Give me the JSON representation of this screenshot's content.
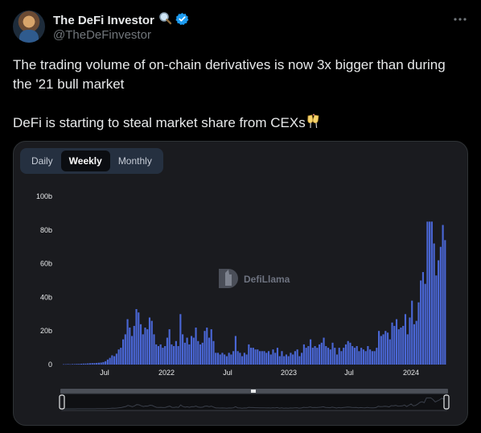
{
  "author": {
    "name": "The DeFi Investor",
    "handle": "@TheDeFinvestor",
    "avatar_icon": "profile-avatar",
    "emoji_icon": "magnifying-glass-icon",
    "badge_icon": "verified-badge-icon",
    "badge_color": "#1d9bf0"
  },
  "more_icon": "more-horizontal-icon",
  "tweet": {
    "line1": "The trading volume of on-chain derivatives is now 3x bigger than during the '21 bull market",
    "line2": "DeFi is starting to steal market share from CEXs",
    "emoji_icon": "clinking-glasses-icon"
  },
  "tabs": [
    {
      "label": "Daily",
      "active": false
    },
    {
      "label": "Weekly",
      "active": true
    },
    {
      "label": "Monthly",
      "active": false
    }
  ],
  "watermark": "DefiLlama",
  "chart_data": {
    "type": "bar",
    "series_color": "#4a67d6",
    "y_ticks": [
      "0",
      "20b",
      "40b",
      "60b",
      "80b",
      "100b"
    ],
    "ylim": [
      0,
      100
    ],
    "x_ticks": [
      "Jul",
      "2022",
      "Jul",
      "2023",
      "Jul",
      "2024"
    ],
    "unit": "billions USD",
    "values": [
      0.2,
      0.2,
      0.3,
      0.2,
      0.3,
      0.3,
      0.4,
      0.4,
      0.5,
      0.6,
      0.6,
      0.7,
      0.8,
      0.9,
      0.9,
      1.0,
      1.1,
      1.2,
      1.5,
      2,
      3,
      4,
      5.5,
      5,
      6.5,
      9,
      10,
      15,
      18,
      27,
      22,
      17,
      23,
      33,
      31,
      24,
      18,
      22,
      21,
      28,
      26,
      18,
      12,
      11,
      12,
      10,
      11,
      16,
      21,
      12,
      11,
      14,
      11,
      30,
      18,
      13,
      16,
      12,
      17,
      16,
      22,
      14,
      12,
      13,
      20,
      22,
      16,
      21,
      14,
      7,
      7,
      6,
      7,
      6,
      5,
      7,
      6,
      8,
      17,
      8,
      7,
      5,
      7,
      6,
      12,
      10,
      10,
      9,
      9,
      8,
      8,
      8,
      7,
      8,
      6,
      9,
      7,
      10,
      5,
      8,
      5,
      6,
      5,
      7,
      6,
      8,
      9,
      5,
      7,
      12,
      10,
      11,
      15,
      10,
      11,
      10,
      12,
      13,
      16,
      11,
      10,
      9,
      13,
      10,
      6,
      10,
      8,
      10,
      12,
      14,
      13,
      11,
      10,
      11,
      8,
      10,
      9,
      8,
      11,
      9,
      8,
      8,
      10,
      20,
      17,
      18,
      20,
      19,
      15,
      25,
      23,
      27,
      21,
      22,
      23,
      30,
      18,
      28,
      38,
      24,
      26,
      37,
      50,
      55,
      48,
      85,
      85,
      85,
      72,
      53,
      62,
      70,
      83,
      74
    ]
  }
}
